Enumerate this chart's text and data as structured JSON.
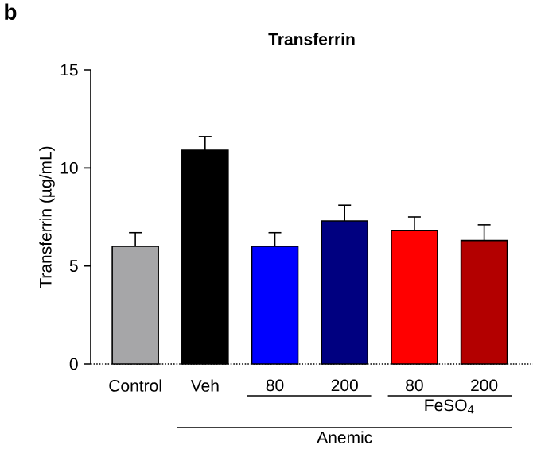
{
  "chart_data": {
    "type": "bar",
    "title": "Transferrin",
    "ylabel": "Transferrin (µg/mL)",
    "categories": [
      "Control",
      "Veh",
      "80",
      "200",
      "80",
      "200"
    ],
    "values": [
      6.0,
      10.9,
      6.0,
      7.3,
      6.8,
      6.3
    ],
    "errors": [
      0.7,
      0.7,
      0.7,
      0.8,
      0.7,
      0.8
    ],
    "colors": [
      "#a6a6a8",
      "#000000",
      "#0000ff",
      "#000080",
      "#ff0000",
      "#b30000"
    ],
    "ylim": [
      0,
      15
    ],
    "yticks": [
      0,
      5,
      10,
      15
    ],
    "ref_lines": [
      {
        "axis": "y",
        "value": 0,
        "line_style": "dotted"
      }
    ],
    "annotations": [
      "b",
      "FeSO$_{4}$",
      "Anemic"
    ]
  }
}
